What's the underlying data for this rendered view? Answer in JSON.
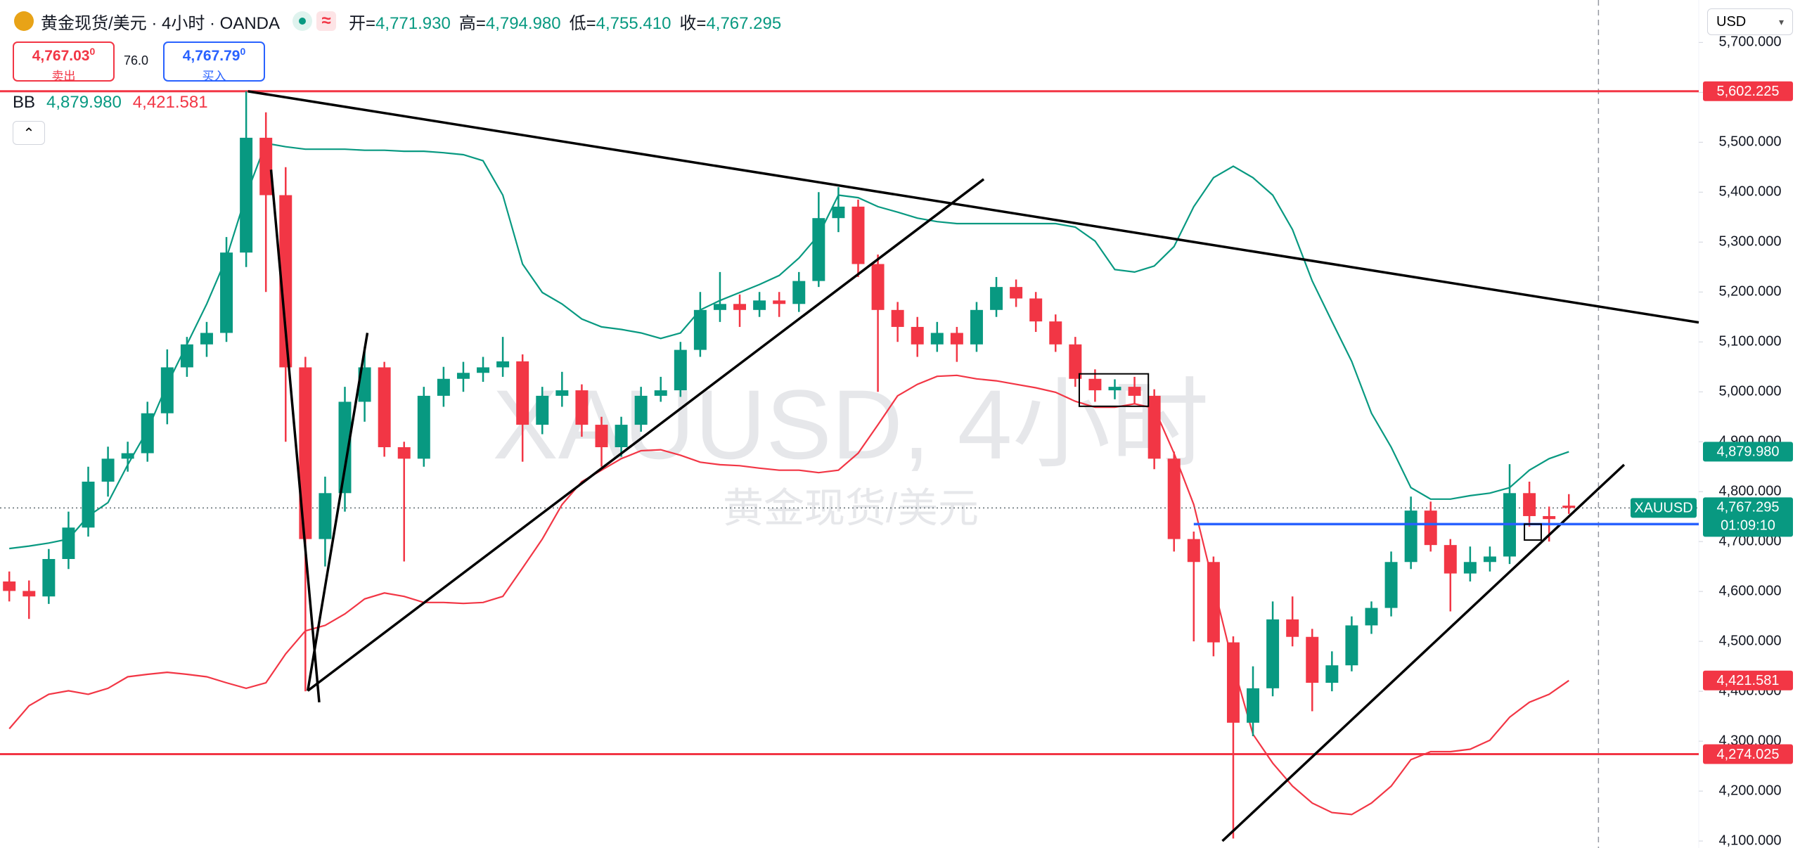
{
  "chart_data": {
    "type": "candlestick",
    "title": "黄金现货/美元 · 4小时 · OANDA",
    "ohlc_header": [
      {
        "label": "开=",
        "value": "4,771.930"
      },
      {
        "label": "高=",
        "value": "4,794.980"
      },
      {
        "label": "低=",
        "value": "4,755.410"
      },
      {
        "label": "收=",
        "value": "4,767.295"
      }
    ],
    "sell": {
      "price": "4,767.03",
      "pip": "0",
      "label": "卖出"
    },
    "spread": "76.0",
    "buy": {
      "price": "4,767.79",
      "pip": "0",
      "label": "买入"
    },
    "indicator": "BB",
    "currency": "USD",
    "watermark": "XAUUSD, 4小时",
    "watermark_sub": "黄金现货/美元",
    "up_color": "#089981",
    "down_color": "#f23645",
    "open": [
      4620,
      4601,
      4590,
      4665,
      4728,
      4820,
      4866,
      4877,
      4957,
      5049,
      5095,
      5118,
      5279,
      5509,
      5394,
      5049,
      4705,
      4797,
      4980,
      5049,
      4889,
      4866,
      4992,
      5026,
      5038,
      5049,
      5061,
      4934,
      4992,
      5003,
      4934,
      4889,
      4934,
      4992,
      5003,
      5084,
      5164,
      5176,
      5164,
      5183,
      5176,
      5222,
      5348,
      5371,
      5256,
      5164,
      5130,
      5095,
      5118,
      5095,
      5164,
      5210,
      5187,
      5141,
      5095,
      5026,
      5003,
      5010,
      4992,
      4866,
      4705,
      4659,
      4498,
      4337,
      4406,
      4544,
      4509,
      4417,
      4452,
      4532,
      4567,
      4659,
      4762,
      4693,
      4636,
      4659,
      4670,
      4797,
      4751,
      4771.93
    ],
    "high": [
      4640,
      4622,
      4685,
      4760,
      4850,
      4890,
      4900,
      4980,
      5085,
      5110,
      5140,
      5310,
      5602.225,
      5560,
      5450,
      5070,
      4830,
      5010,
      5090,
      5060,
      4900,
      5010,
      5050,
      5060,
      5070,
      5110,
      5075,
      5010,
      5040,
      5015,
      4950,
      4950,
      5010,
      5030,
      5100,
      5200,
      5240,
      5195,
      5200,
      5200,
      5240,
      5400,
      5410,
      5385,
      5275,
      5180,
      5150,
      5140,
      5130,
      5180,
      5230,
      5225,
      5200,
      5155,
      5110,
      5045,
      5025,
      5030,
      5005,
      4880,
      4720,
      4670,
      4510,
      4450,
      4580,
      4590,
      4525,
      4480,
      4550,
      4580,
      4680,
      4790,
      4780,
      4705,
      4690,
      4690,
      4855,
      4820,
      4770,
      4794.98
    ],
    "low": [
      4580,
      4545,
      4575,
      4645,
      4710,
      4790,
      4840,
      4860,
      4935,
      5030,
      5070,
      5100,
      5250,
      5200,
      4900,
      4400,
      4650,
      4760,
      4940,
      4870,
      4660,
      4850,
      4970,
      5000,
      5020,
      5030,
      4860,
      4915,
      4970,
      4910,
      4850,
      4870,
      4920,
      4980,
      4990,
      5070,
      5140,
      5130,
      5150,
      5150,
      5160,
      5210,
      5320,
      5230,
      5000,
      5100,
      5070,
      5080,
      5060,
      5080,
      5150,
      5170,
      5120,
      5080,
      5010,
      4980,
      4985,
      4975,
      4845,
      4680,
      4500,
      4470,
      4105,
      4310,
      4390,
      4490,
      4360,
      4400,
      4440,
      4515,
      4550,
      4645,
      4680,
      4560,
      4620,
      4640,
      4655,
      4730,
      4700,
      4755.41
    ],
    "close": [
      4601,
      4590,
      4665,
      4728,
      4820,
      4866,
      4877,
      4957,
      5049,
      5095,
      5118,
      5279,
      5509,
      5394,
      5049,
      4705,
      4797,
      4980,
      5049,
      4889,
      4866,
      4992,
      5026,
      5038,
      5049,
      5061,
      4934,
      4992,
      5003,
      4934,
      4889,
      4934,
      4992,
      5003,
      5084,
      5164,
      5176,
      5164,
      5183,
      5176,
      5222,
      5348,
      5371,
      5256,
      5164,
      5130,
      5095,
      5118,
      5095,
      5164,
      5210,
      5187,
      5141,
      5095,
      5026,
      5003,
      5010,
      4992,
      4866,
      4705,
      4659,
      4498,
      4337,
      4406,
      4544,
      4509,
      4417,
      4452,
      4532,
      4567,
      4659,
      4762,
      4693,
      4636,
      4659,
      4670,
      4797,
      4751,
      4745,
      4767.295
    ],
    "upper_band": {
      "color": "#089981",
      "last_label": "4,879.980",
      "values": [
        4686,
        4691,
        4697,
        4705,
        4751,
        4778,
        4854,
        4923,
        5015,
        5095,
        5176,
        5268,
        5394,
        5498,
        5491,
        5486,
        5486,
        5486,
        5484,
        5484,
        5482,
        5482,
        5479,
        5475,
        5463,
        5394,
        5256,
        5199,
        5176,
        5146,
        5130,
        5125,
        5118,
        5107,
        5118,
        5164,
        5183,
        5199,
        5215,
        5233,
        5268,
        5314,
        5394,
        5389,
        5371,
        5360,
        5348,
        5341,
        5337,
        5337,
        5337,
        5337,
        5337,
        5337,
        5330,
        5302,
        5245,
        5240,
        5252,
        5291,
        5371,
        5429,
        5452,
        5429,
        5394,
        5325,
        5222,
        5141,
        5061,
        4957,
        4889,
        4808,
        4785,
        4785,
        4792,
        4797,
        4808,
        4843,
        4866,
        4879.98
      ]
    },
    "lower_band": {
      "color": "#f23645",
      "last_label": "4,421.581",
      "values": [
        4325,
        4371,
        4394,
        4401,
        4394,
        4406,
        4429,
        4434,
        4438,
        4434,
        4429,
        4417,
        4406,
        4417,
        4475,
        4521,
        4532,
        4555,
        4585,
        4597,
        4590,
        4578,
        4578,
        4576,
        4578,
        4590,
        4647,
        4705,
        4774,
        4820,
        4843,
        4866,
        4882,
        4884,
        4873,
        4859,
        4854,
        4852,
        4847,
        4843,
        4843,
        4838,
        4843,
        4877,
        4934,
        4992,
        5015,
        5031,
        5033,
        5026,
        5022,
        5015,
        5008,
        4999,
        4981,
        4969,
        4969,
        4976,
        4967,
        4877,
        4774,
        4613,
        4452,
        4314,
        4256,
        4210,
        4176,
        4157,
        4153,
        4176,
        4210,
        4263,
        4279,
        4279,
        4284,
        4302,
        4348,
        4378,
        4394,
        4421.581
      ]
    },
    "xlim": [
      -0.47,
      85.58
    ],
    "ylim": [
      4086,
      5785
    ],
    "yticks": [
      {
        "value": 4100,
        "label": "4,100.000"
      },
      {
        "value": 4200,
        "label": "4,200.000"
      },
      {
        "value": 4300,
        "label": "4,300.000"
      },
      {
        "value": 4400,
        "label": "4,400.000"
      },
      {
        "value": 4500,
        "label": "4,500.000"
      },
      {
        "value": 4600,
        "label": "4,600.000"
      },
      {
        "value": 4700,
        "label": "4,700.000"
      },
      {
        "value": 4800,
        "label": "4,800.000"
      },
      {
        "value": 4900,
        "label": "4,900.000"
      },
      {
        "value": 5000,
        "label": "5,000.000"
      },
      {
        "value": 5100,
        "label": "5,100.000"
      },
      {
        "value": 5200,
        "label": "5,200.000"
      },
      {
        "value": 5300,
        "label": "5,300.000"
      },
      {
        "value": 5400,
        "label": "5,400.000"
      },
      {
        "value": 5500,
        "label": "5,500.000"
      },
      {
        "value": 5600,
        "label": "5,600.000"
      },
      {
        "value": 5700,
        "label": "5,700.000"
      }
    ],
    "hlines": [
      {
        "value": 5602.225,
        "label": "5,602.225",
        "color": "#f23645"
      },
      {
        "value": 4274.025,
        "label": "4,274.025",
        "color": "#f23645"
      }
    ],
    "drawings": [
      {
        "x": [
          12.09,
          85.58
        ],
        "y": [
          5602,
          5139
        ],
        "color": "#000000"
      },
      {
        "x": [
          13.26,
          15.7
        ],
        "y": [
          5445,
          4378
        ],
        "color": "#000000"
      },
      {
        "x": [
          15.12,
          18.14
        ],
        "y": [
          4401,
          5118
        ],
        "color": "#000000"
      },
      {
        "x": [
          15.12,
          49.36
        ],
        "y": [
          4401,
          5426
        ],
        "color": "#000000"
      },
      {
        "x": [
          61.45,
          81.8
        ],
        "y": [
          4100,
          4854
        ],
        "color": "#000000"
      },
      {
        "x": [
          60.0,
          85.58
        ],
        "y": [
          4735,
          4735
        ],
        "color": "#2962ff"
      }
    ],
    "boxes": [
      {
        "x": [
          54.2,
          57.7
        ],
        "y": [
          4971,
          5036
        ]
      },
      {
        "x": [
          76.75,
          77.6
        ],
        "y": [
          4703,
          4735
        ]
      }
    ],
    "last_tag": {
      "symbol": "XAUUSD",
      "countdown": "01:09:10",
      "color": "#089981"
    }
  }
}
